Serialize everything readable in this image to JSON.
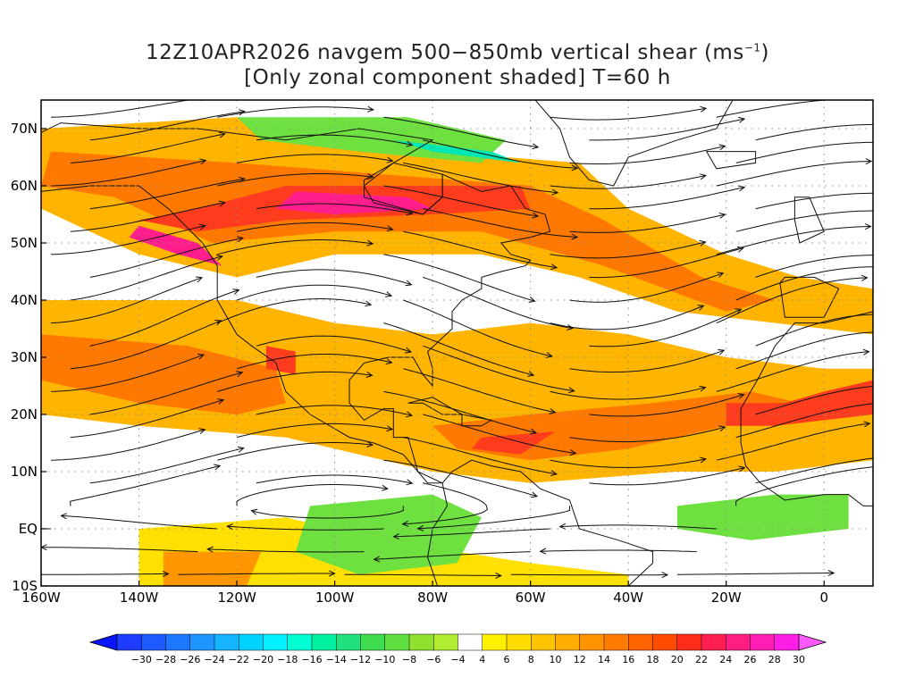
{
  "title": {
    "line1_prefix": "12Z10APR2026 navgem 500−850mb vertical shear (ms",
    "line1_exp": "−1",
    "line1_suffix": ")",
    "line2": "[Only zonal component shaded] T=60 h"
  },
  "map": {
    "region": "North Atlantic / North America / Eastern Pacific",
    "projection": "lat-lon (cylindrical equidistant)",
    "lon_range": [
      -160,
      10
    ],
    "lat_range": [
      -10,
      75
    ],
    "lat_ticks": [
      {
        "value": 70,
        "label": "70N"
      },
      {
        "value": 60,
        "label": "60N"
      },
      {
        "value": 50,
        "label": "50N"
      },
      {
        "value": 40,
        "label": "40N"
      },
      {
        "value": 30,
        "label": "30N"
      },
      {
        "value": 20,
        "label": "20N"
      },
      {
        "value": 10,
        "label": "10N"
      },
      {
        "value": 0,
        "label": "EQ"
      },
      {
        "value": -10,
        "label": "10S"
      }
    ],
    "lon_ticks": [
      {
        "value": -160,
        "label": "160W"
      },
      {
        "value": -140,
        "label": "140W"
      },
      {
        "value": -120,
        "label": "120W"
      },
      {
        "value": -100,
        "label": "100W"
      },
      {
        "value": -80,
        "label": "80W"
      },
      {
        "value": -60,
        "label": "60W"
      },
      {
        "value": -40,
        "label": "40W"
      },
      {
        "value": -20,
        "label": "20W"
      },
      {
        "value": 0,
        "label": "0"
      }
    ],
    "grid": "dotted",
    "overlays": [
      "coastlines",
      "political-boundaries",
      "streamlines"
    ],
    "shaded_field": "zonal component of 500-850mb vertical shear (m/s)"
  },
  "colorbar": {
    "orientation": "horizontal",
    "extend": "both",
    "labels": [
      "−30",
      "−28",
      "−26",
      "−24",
      "−22",
      "−20",
      "−18",
      "−16",
      "−14",
      "−12",
      "−10",
      "−8",
      "−6",
      "−4",
      "4",
      "6",
      "8",
      "10",
      "12",
      "14",
      "16",
      "18",
      "20",
      "22",
      "24",
      "26",
      "28",
      "30"
    ],
    "colors": [
      "#1e3cff",
      "#1e5aff",
      "#1e78ff",
      "#1e96ff",
      "#14b4ff",
      "#00d2ff",
      "#00f0ff",
      "#00ffd2",
      "#00f0a0",
      "#20e080",
      "#40dc50",
      "#60e040",
      "#90e030",
      "#b0ec30",
      "#ffffff",
      "#fff000",
      "#ffdc00",
      "#ffc400",
      "#ffac00",
      "#ff9400",
      "#ff7c00",
      "#ff6400",
      "#ff4c00",
      "#ff2c1a",
      "#ff1e50",
      "#ff1e82",
      "#ff1eb4",
      "#ff1ee6"
    ],
    "under_color": "#0a14ff",
    "over_color": "#ff5aff"
  }
}
